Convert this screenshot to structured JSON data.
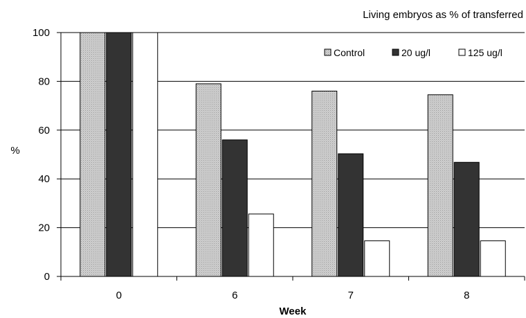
{
  "chart_data": {
    "type": "bar",
    "title": "Living embryos as % of transferred",
    "xlabel": "Week",
    "ylabel": "%",
    "categories": [
      "0",
      "6",
      "7",
      "8"
    ],
    "ylim": [
      0,
      100
    ],
    "yticks": [
      0,
      20,
      40,
      60,
      80,
      100
    ],
    "grid": true,
    "legend_position": "top-right",
    "series": [
      {
        "name": "Control",
        "values": [
          100,
          79,
          76,
          74.5
        ],
        "color": "#d4d4d4",
        "pattern": "dotted-gray"
      },
      {
        "name": "20 ug/l",
        "values": [
          100,
          56,
          50.3,
          46.8
        ],
        "color": "#333333"
      },
      {
        "name": "125 ug/l",
        "values": [
          100,
          25.6,
          14.6,
          14.6
        ],
        "color": "#ffffff"
      }
    ]
  }
}
